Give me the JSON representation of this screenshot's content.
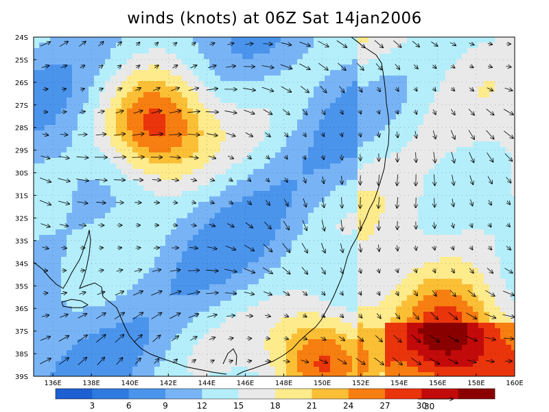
{
  "title": "winds (knots) at 06Z Sat 14jan2006",
  "map": {
    "lon_ticks": [
      "136E",
      "138E",
      "140E",
      "142E",
      "144E",
      "146E",
      "148E",
      "150E",
      "152E",
      "154E",
      "156E",
      "158E",
      "160E"
    ],
    "lon_values": [
      136,
      138,
      140,
      142,
      144,
      146,
      148,
      150,
      152,
      154,
      156,
      158,
      160
    ],
    "lat_ticks": [
      "24S",
      "25S",
      "26S",
      "27S",
      "28S",
      "29S",
      "30S",
      "31S",
      "32S",
      "33S",
      "34S",
      "35S",
      "36S",
      "37S",
      "38S",
      "39S"
    ],
    "lat_values": [
      -24,
      -25,
      -26,
      -27,
      -28,
      -29,
      -30,
      -31,
      -32,
      -33,
      -34,
      -35,
      -36,
      -37,
      -38,
      -39
    ],
    "lon_range": [
      135,
      160
    ],
    "lat_range": [
      -39,
      -24
    ],
    "wind_maxima": [
      {
        "lon": 141.3,
        "lat": -28.0,
        "speed": 30
      },
      {
        "lon": 150.0,
        "lat": -38.2,
        "speed": 30
      },
      {
        "lon": 156.5,
        "lat": -37.3,
        "speed": 27
      }
    ],
    "colors": {
      "background": "#ffffff",
      "coast": "#000000",
      "arrow": "#000000"
    }
  },
  "colorbar": {
    "colors": [
      "#1e5fd2",
      "#2e7ae0",
      "#4b94ec",
      "#78b4f5",
      "#b4eefa",
      "#e9e9e9",
      "#fdeb8c",
      "#fbbf36",
      "#f77e10",
      "#e9340c",
      "#c30a0a",
      "#8a0000"
    ],
    "labels": [
      "3",
      "6",
      "9",
      "12",
      "15",
      "18",
      "21",
      "24",
      "27",
      "30"
    ]
  },
  "reference_vector": {
    "label": "30"
  }
}
